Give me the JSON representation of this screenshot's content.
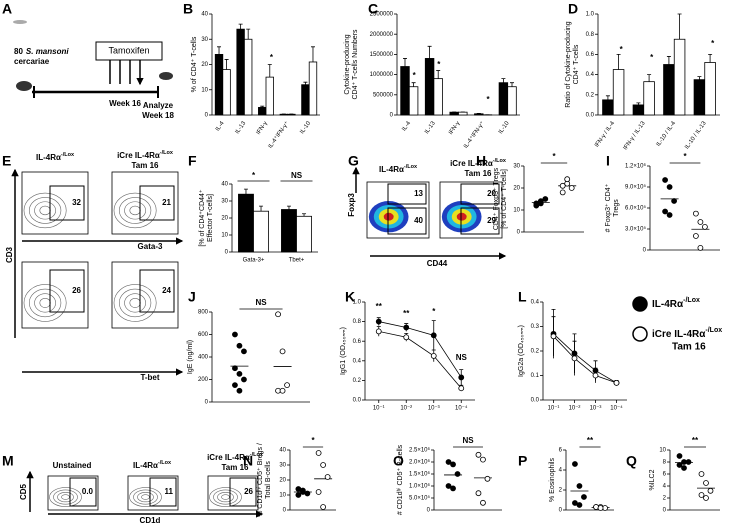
{
  "panel_letters": [
    "A",
    "B",
    "C",
    "D",
    "E",
    "F",
    "G",
    "H",
    "I",
    "J",
    "K",
    "L",
    "M",
    "N",
    "O",
    "P",
    "Q"
  ],
  "schematic": {
    "host_count": 80,
    "species": "S. mansoni",
    "host_line2": "cercariae",
    "treatment": "Tamoxifen",
    "week": "Week 16",
    "analyze": "Analyze",
    "analyze_week": "Week 18"
  },
  "legend": {
    "entries": [
      {
        "text": "IL-4Rα",
        "sup": "-/Lox",
        "color": "#000000"
      },
      {
        "text": "iCre IL-4Rα",
        "sup": "-/Lox",
        "line2": "Tam 16",
        "color": "#ffffff"
      }
    ]
  },
  "flow": [
    {
      "headers": [
        {
          "text": "IL-4Rα",
          "sup": "-/Lox"
        },
        {
          "text": "iCre IL-4Rα",
          "sup": "-/Lox",
          "line2": "Tam 16"
        }
      ],
      "gates": [
        32,
        21,
        26,
        24
      ],
      "axes": [
        "CD3",
        "Gata-3",
        "T-bet"
      ]
    },
    {
      "headers": [
        {
          "text": "IL-4Rα",
          "sup": "-/Lox"
        },
        {
          "text": "iCre IL-4Rα",
          "sup": "-/Lox",
          "line2": "Tam 16"
        }
      ],
      "gates": [
        13,
        40,
        20,
        29
      ],
      "axes": [
        "Foxp3",
        "CD44"
      ]
    },
    {
      "headers": [
        {
          "text": "Unstained"
        },
        {
          "text": "IL-4Rα",
          "sup": "-/Lox"
        },
        {
          "text": "iCre IL-4Rα",
          "sup": "-/Lox",
          "line2": "Tam 16"
        }
      ],
      "gates": [
        0,
        11,
        26
      ],
      "value_labels": [
        "0.0",
        "11",
        "26"
      ],
      "axes": [
        "CD5",
        "CD1d"
      ]
    }
  ],
  "chart_data": [
    {
      "type": "bar",
      "ylabel": [
        "% of CD4⁺ T-cells"
      ],
      "categories": [
        "IL-4",
        "IL-13",
        "IFN-γ",
        "IL-4⁺IFN-γ⁺",
        "IL-10"
      ],
      "series": [
        {
          "color": "#000000",
          "values": [
            24,
            34,
            3,
            0.3,
            12
          ],
          "errors": [
            3,
            2,
            0.5,
            0.1,
            1
          ]
        },
        {
          "color": "#ffffff",
          "values": [
            18,
            30,
            15,
            0.3,
            21
          ],
          "errors": [
            4,
            4,
            5,
            0.1,
            6
          ]
        }
      ],
      "ylim": [
        0,
        40
      ],
      "yticks": [
        0,
        10,
        20,
        30,
        40
      ],
      "annotations": [
        "*"
      ]
    },
    {
      "type": "bar",
      "ylabel": [
        "Cytokine-producing",
        "CD4⁺ T-cells Numbers"
      ],
      "categories": [
        "IL-4",
        "IL-13",
        "IFN-γ",
        "IL-4⁺IFN-γ⁺",
        "IL-10"
      ],
      "series": [
        {
          "color": "#000000",
          "values": [
            1200000,
            1400000,
            70000,
            30000,
            800000
          ],
          "errors": [
            200000,
            300000,
            3000,
            10000,
            100000
          ]
        },
        {
          "color": "#ffffff",
          "values": [
            700000,
            900000,
            70000,
            5000,
            700000
          ],
          "errors": [
            100000,
            200000,
            3000,
            2000,
            100000
          ]
        }
      ],
      "ylim": [
        0,
        2500000
      ],
      "yticks": [
        0,
        500000,
        1000000,
        1500000,
        2000000,
        2500000
      ],
      "annotations": [
        "*",
        "*",
        "*"
      ]
    },
    {
      "type": "bar",
      "ylabel": [
        "Ratio of Cytokine-producing",
        "CD4⁺ T-cells"
      ],
      "categories": [
        "IFN-γ / IL-4",
        "IFN-γ / IL-13",
        "IL-10 / IL-4",
        "IL-10 / IL-13"
      ],
      "series": [
        {
          "color": "#000000",
          "values": [
            0.15,
            0.1,
            0.5,
            0.35
          ],
          "errors": [
            0.04,
            0.02,
            0.08,
            0.03
          ]
        },
        {
          "color": "#ffffff",
          "values": [
            0.45,
            0.33,
            0.75,
            0.52
          ],
          "errors": [
            0.15,
            0.07,
            0.25,
            0.08
          ]
        }
      ],
      "ylim": [
        0,
        1
      ],
      "yticks": [
        {
          "value": 0,
          "label": "0.0"
        },
        {
          "value": 0.2,
          "label": "0.2"
        },
        {
          "value": 0.4,
          "label": "0.4"
        },
        {
          "value": 0.6,
          "label": "0.6"
        },
        {
          "value": 0.8,
          "label": "0.8"
        },
        {
          "value": 1,
          "label": "1.0"
        }
      ],
      "annotations": [
        "*",
        "*",
        "*"
      ]
    },
    {
      "type": "bar",
      "ylabel": [
        "[% of CD4⁺CD44⁺",
        "Effector T-cells]"
      ],
      "categories": [
        "Gata-3+",
        "Tbet+"
      ],
      "series": [
        {
          "color": "#000000",
          "values": [
            34,
            25
          ],
          "errors": [
            3,
            2
          ]
        },
        {
          "color": "#ffffff",
          "values": [
            24,
            21
          ],
          "errors": [
            3,
            1.5
          ]
        }
      ],
      "ylim": [
        0,
        40
      ],
      "yticks": [
        0,
        10,
        20,
        30,
        40
      ],
      "annotations": [
        "*",
        "NS"
      ]
    },
    {
      "type": "strip",
      "ylabel": [
        "CD4⁺ Foxp3⁺ Tregs",
        "[% of CD4⁺ T-cells]"
      ],
      "series": [
        {
          "color": "#000000",
          "values": [
            13,
            14,
            15,
            12,
            13
          ]
        },
        {
          "color": "#ffffff",
          "values": [
            18,
            22,
            20,
            21,
            24
          ]
        }
      ],
      "ylim": [
        0,
        30
      ],
      "yticks": [
        0,
        10,
        20,
        30
      ],
      "annotations": [
        "*"
      ]
    },
    {
      "type": "strip",
      "ylabel": [
        "# Foxp3⁺ CD4⁺",
        "Tregs"
      ],
      "series": [
        {
          "color": "#000000",
          "values": [
            1000000,
            900000,
            700000,
            550000,
            500000
          ]
        },
        {
          "color": "#ffffff",
          "values": [
            520000,
            400000,
            330000,
            200000,
            30000
          ]
        }
      ],
      "ylim": [
        0,
        1200000
      ],
      "yticks": [
        0,
        {
          "value": 300000,
          "label": "3.0×10⁵"
        },
        {
          "value": 600000,
          "label": "6.0×10⁵"
        },
        {
          "value": 900000,
          "label": "9.0×10⁵"
        },
        {
          "value": 1200000,
          "label": "1.2×10⁶"
        }
      ],
      "annotations": [
        "*"
      ]
    },
    {
      "type": "strip",
      "ylabel": [
        "IgE (ng/ml)"
      ],
      "series": [
        {
          "color": "#000000",
          "values": [
            600,
            500,
            450,
            300,
            250,
            200,
            150,
            100
          ]
        },
        {
          "color": "#ffffff",
          "values": [
            780,
            450,
            150,
            100,
            100
          ]
        }
      ],
      "ylim": [
        0,
        800
      ],
      "yticks": [
        0,
        200,
        400,
        600,
        800
      ],
      "annotations": [
        "NS"
      ]
    },
    {
      "type": "line",
      "ylabel": [
        "IgG1 (OD₄₅₀ₙₘ)"
      ],
      "categories": [
        "10⁻¹",
        "10⁻²",
        "10⁻³",
        "10⁻⁴"
      ],
      "series": [
        {
          "color": "#000000",
          "values": [
            0.8,
            0.74,
            0.66,
            0.23
          ],
          "errors": [
            0.04,
            0.04,
            0.15,
            0.08
          ]
        },
        {
          "color": "#ffffff",
          "values": [
            0.7,
            0.64,
            0.45,
            0.12
          ],
          "errors": [
            0.05,
            0.04,
            0.06,
            0.03
          ]
        }
      ],
      "ylim": [
        0,
        1
      ],
      "yticks": [
        {
          "value": 0,
          "label": "0.0"
        },
        {
          "value": 0.2,
          "label": "0.2"
        },
        {
          "value": 0.4,
          "label": "0.4"
        },
        {
          "value": 0.6,
          "label": "0.6"
        },
        {
          "value": 0.8,
          "label": "0.8"
        },
        {
          "value": 1,
          "label": "1.0"
        }
      ],
      "annotations": [
        "**",
        "**",
        "*",
        "NS"
      ]
    },
    {
      "type": "line",
      "ylabel": [
        "IgG2a (OD₄₅₀ₙₘ)"
      ],
      "categories": [
        "10⁻¹",
        "10⁻²",
        "10⁻³",
        "10⁻⁴"
      ],
      "series": [
        {
          "color": "#000000",
          "values": [
            0.27,
            0.19,
            0.12,
            0.07
          ],
          "errors": [
            0.1,
            0.08,
            0.04,
            0.01
          ]
        },
        {
          "color": "#ffffff",
          "values": [
            0.26,
            0.17,
            0.1,
            0.07
          ],
          "errors": [
            0.08,
            0.07,
            0.03,
            0.01
          ]
        }
      ],
      "ylim": [
        0,
        0.4
      ],
      "yticks": [
        {
          "value": 0,
          "label": "0.0"
        },
        0.1,
        0.2,
        0.3,
        0.4
      ],
      "annotations": []
    },
    {
      "type": "strip",
      "ylabel": [
        "% CD1dʰⁱ CD5⁺ Bregs /",
        "Total B-cells"
      ],
      "series": [
        {
          "color": "#000000",
          "values": [
            14,
            12,
            11,
            10,
            13
          ]
        },
        {
          "color": "#ffffff",
          "values": [
            38,
            30,
            22,
            12,
            2
          ]
        }
      ],
      "ylim": [
        0,
        40
      ],
      "yticks": [
        0,
        10,
        20,
        30,
        40
      ],
      "annotations": [
        "*"
      ]
    },
    {
      "type": "strip",
      "ylabel": [
        "# CD1dʰⁱ CD5⁺ B-cells"
      ],
      "series": [
        {
          "color": "#000000",
          "values": [
            2000000,
            1900000,
            1500000,
            1000000,
            900000
          ]
        },
        {
          "color": "#ffffff",
          "values": [
            2300000,
            2100000,
            1300000,
            700000,
            300000
          ]
        }
      ],
      "ylim": [
        0,
        2500000
      ],
      "yticks": [
        0,
        {
          "value": 500000,
          "label": "5.0×10⁵"
        },
        {
          "value": 1000000,
          "label": "1.0×10⁶"
        },
        {
          "value": 1500000,
          "label": "1.5×10⁶"
        },
        {
          "value": 2000000,
          "label": "2.0×10⁶"
        },
        {
          "value": 2500000,
          "label": "2.5×10⁶"
        }
      ],
      "annotations": [
        "NS"
      ]
    },
    {
      "type": "strip",
      "ylabel": [
        "% Eosinophils"
      ],
      "series": [
        {
          "color": "#000000",
          "values": [
            4.6,
            2.4,
            1.3,
            0.7,
            0.5
          ]
        },
        {
          "color": "#ffffff",
          "values": [
            0.3,
            0.3,
            0.2,
            0.3,
            0.2
          ]
        }
      ],
      "ylim": [
        0,
        6
      ],
      "yticks": [
        0,
        2,
        4,
        6
      ],
      "annotations": [
        "**"
      ]
    },
    {
      "type": "strip",
      "ylabel": [
        "%ILC2"
      ],
      "series": [
        {
          "color": "#000000",
          "values": [
            9,
            8,
            8,
            7.5,
            7
          ]
        },
        {
          "color": "#ffffff",
          "values": [
            6,
            4.5,
            3.2,
            2.5,
            2
          ]
        }
      ],
      "ylim": [
        0,
        10
      ],
      "yticks": [
        0,
        2,
        4,
        6,
        8,
        10
      ],
      "annotations": [
        "**"
      ]
    }
  ]
}
